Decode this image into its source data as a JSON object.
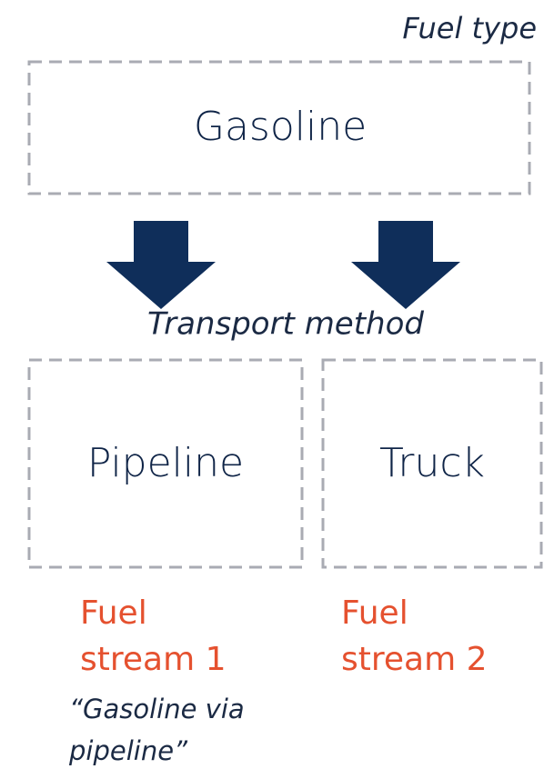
{
  "fuel_type_label": "Fuel type",
  "fuel": "Gasoline",
  "transport_label": "Transport method",
  "methods": [
    {
      "label": "Pipeline",
      "stream": [
        "Fuel",
        "stream 1"
      ],
      "note": [
        "“Gasoline via",
        "pipeline”"
      ]
    },
    {
      "label": "Truck",
      "stream": [
        "Fuel",
        "stream 2"
      ]
    }
  ]
}
